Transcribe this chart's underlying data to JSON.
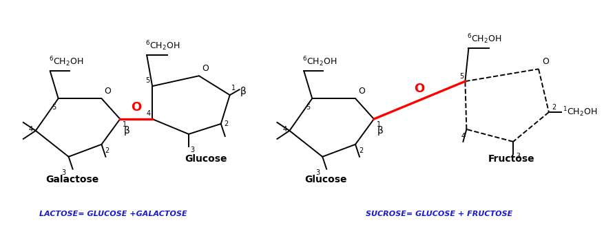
{
  "bg_color": "#ffffff",
  "line_color": "#000000",
  "red_color": "#ff0000",
  "blue_color": "#1a1acd",
  "label_fontsize": 9,
  "small_fontsize": 7,
  "caption_fontsize": 8,
  "lactose_caption": "LACTOSE= GLUCOSE +GALACTOSE",
  "sucrose_caption": "SUCROSE= GLUCOSE + FRUCTOSE",
  "galactose_label": "Galactose",
  "glucose1_label": "Glucose",
  "glucose2_label": "Glucose",
  "fructose_label": "Fructose"
}
